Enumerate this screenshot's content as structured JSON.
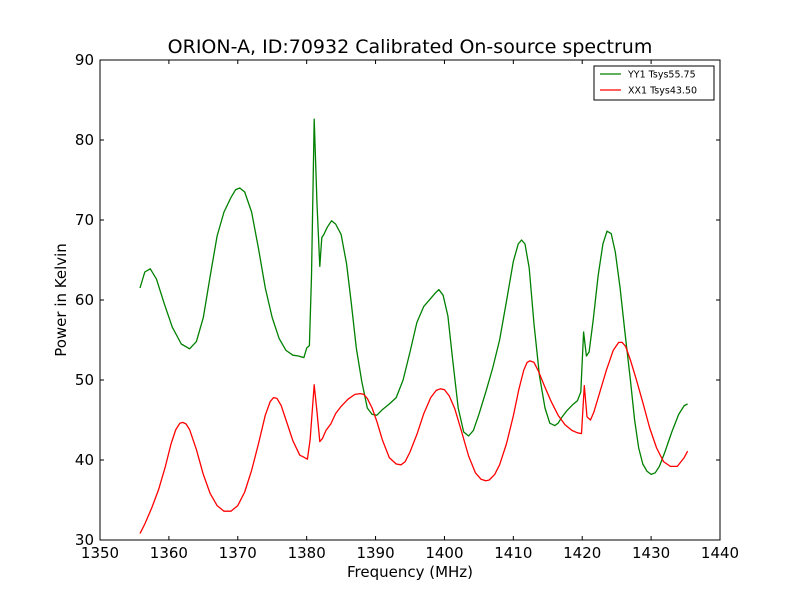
{
  "chart_data": {
    "type": "line",
    "title": "ORION-A, ID:70932 Calibrated On-source spectrum",
    "xlabel": "Frequency (MHz)",
    "ylabel": "Power in Kelvin",
    "xlim": [
      1350,
      1440
    ],
    "ylim": [
      30,
      90
    ],
    "xticks": [
      1350,
      1360,
      1370,
      1380,
      1390,
      1400,
      1410,
      1420,
      1430,
      1440
    ],
    "yticks": [
      30,
      40,
      50,
      60,
      70,
      80,
      90
    ],
    "grid": false,
    "legend_position": "top-right",
    "series": [
      {
        "name": "YY1 Tsys55.75",
        "color": "#008000",
        "x": [
          1355.8,
          1356.5,
          1357.3,
          1358.2,
          1359.3,
          1360.5,
          1361.8,
          1363.0,
          1364.0,
          1365.0,
          1366.0,
          1367.0,
          1368.0,
          1369.0,
          1369.7,
          1370.3,
          1371.0,
          1372.0,
          1373.0,
          1374.0,
          1375.0,
          1376.0,
          1377.0,
          1378.0,
          1378.8,
          1379.6,
          1380.0,
          1380.4,
          1380.7,
          1381.1,
          1381.5,
          1381.9,
          1382.2,
          1382.5,
          1383.0,
          1383.6,
          1384.2,
          1385.0,
          1385.8,
          1386.5,
          1387.2,
          1388.0,
          1388.8,
          1389.5,
          1390.2,
          1391.0,
          1392.0,
          1393.0,
          1394.0,
          1395.0,
          1396.0,
          1397.0,
          1398.0,
          1398.7,
          1399.2,
          1399.8,
          1400.5,
          1401.2,
          1402.0,
          1402.8,
          1403.5,
          1404.2,
          1405.0,
          1406.0,
          1407.0,
          1408.0,
          1409.0,
          1410.0,
          1410.7,
          1411.2,
          1411.7,
          1412.3,
          1413.0,
          1413.8,
          1414.6,
          1415.3,
          1416.0,
          1416.5,
          1417.0,
          1417.8,
          1418.6,
          1419.3,
          1419.8,
          1420.2,
          1420.6,
          1421.0,
          1421.6,
          1422.3,
          1423.0,
          1423.6,
          1424.2,
          1424.8,
          1425.5,
          1426.2,
          1427.0,
          1427.6,
          1428.2,
          1428.8,
          1429.4,
          1430.0,
          1430.6,
          1431.2,
          1432.0,
          1433.0,
          1434.0,
          1434.8,
          1435.3
        ],
        "y": [
          61.5,
          63.5,
          63.9,
          62.6,
          59.6,
          56.6,
          54.5,
          53.9,
          54.8,
          57.8,
          63.0,
          68.0,
          71.0,
          72.8,
          73.8,
          74.0,
          73.5,
          71.0,
          66.5,
          61.5,
          57.8,
          55.2,
          53.7,
          53.1,
          53.0,
          52.8,
          54.0,
          54.3,
          63.0,
          82.6,
          72.0,
          64.2,
          67.8,
          68.2,
          69.1,
          69.9,
          69.5,
          68.2,
          64.5,
          59.5,
          54.0,
          49.8,
          46.5,
          45.7,
          45.6,
          46.3,
          47.0,
          47.8,
          50.0,
          53.5,
          57.2,
          59.2,
          60.2,
          60.9,
          61.3,
          60.6,
          58.0,
          52.5,
          46.5,
          43.5,
          43.0,
          43.7,
          45.7,
          48.5,
          51.5,
          55.0,
          59.8,
          64.8,
          67.0,
          67.5,
          67.0,
          64.0,
          57.0,
          50.5,
          46.5,
          44.6,
          44.3,
          44.6,
          45.3,
          46.2,
          46.9,
          47.4,
          48.5,
          56.0,
          53.0,
          53.5,
          57.5,
          63.0,
          67.0,
          68.6,
          68.3,
          66.0,
          61.5,
          56.0,
          50.0,
          45.0,
          41.5,
          39.5,
          38.6,
          38.2,
          38.4,
          39.2,
          41.0,
          43.5,
          45.7,
          46.8,
          47.0
        ]
      },
      {
        "name": "XX1 Tsys43.50",
        "color": "#ff0000",
        "x": [
          1355.8,
          1356.5,
          1357.5,
          1358.5,
          1359.5,
          1360.3,
          1361.0,
          1361.6,
          1362.0,
          1362.5,
          1363.0,
          1364.0,
          1365.0,
          1366.0,
          1367.0,
          1368.0,
          1369.0,
          1370.0,
          1371.0,
          1372.0,
          1373.0,
          1374.0,
          1374.7,
          1375.2,
          1375.7,
          1376.3,
          1377.0,
          1378.0,
          1379.0,
          1379.5,
          1380.1,
          1380.5,
          1381.1,
          1381.5,
          1381.9,
          1382.3,
          1382.8,
          1383.5,
          1384.2,
          1385.0,
          1386.0,
          1387.0,
          1387.8,
          1388.3,
          1388.8,
          1389.5,
          1390.2,
          1391.0,
          1392.0,
          1393.0,
          1393.7,
          1394.3,
          1395.0,
          1396.0,
          1397.0,
          1398.0,
          1398.8,
          1399.4,
          1400.0,
          1400.7,
          1401.5,
          1402.5,
          1403.5,
          1404.5,
          1405.3,
          1406.0,
          1406.5,
          1407.3,
          1408.0,
          1409.0,
          1410.0,
          1410.8,
          1411.5,
          1412.0,
          1412.4,
          1413.0,
          1413.6,
          1414.5,
          1415.5,
          1416.5,
          1417.5,
          1418.5,
          1419.3,
          1419.9,
          1420.3,
          1420.7,
          1421.2,
          1421.7,
          1422.5,
          1423.5,
          1424.5,
          1425.3,
          1425.8,
          1426.3,
          1427.0,
          1427.8,
          1428.8,
          1429.8,
          1430.8,
          1431.8,
          1432.8,
          1433.8,
          1434.8,
          1435.3
        ],
        "y": [
          30.8,
          32.0,
          34.0,
          36.3,
          39.2,
          42.0,
          43.8,
          44.6,
          44.7,
          44.5,
          43.8,
          41.3,
          38.2,
          35.8,
          34.3,
          33.6,
          33.6,
          34.3,
          36.0,
          38.7,
          42.0,
          45.6,
          47.3,
          47.8,
          47.7,
          46.8,
          45.0,
          42.4,
          40.6,
          40.4,
          40.1,
          42.5,
          49.4,
          46.0,
          42.3,
          42.7,
          43.7,
          44.5,
          45.8,
          46.7,
          47.6,
          48.2,
          48.3,
          48.2,
          47.7,
          46.5,
          44.8,
          42.5,
          40.3,
          39.5,
          39.4,
          39.8,
          41.0,
          43.2,
          45.8,
          47.8,
          48.7,
          48.9,
          48.8,
          48.0,
          46.4,
          43.5,
          40.5,
          38.4,
          37.6,
          37.4,
          37.5,
          38.2,
          39.4,
          42.0,
          45.5,
          48.8,
          51.2,
          52.2,
          52.4,
          52.2,
          51.2,
          49.3,
          47.3,
          45.6,
          44.4,
          43.7,
          43.4,
          43.3,
          49.3,
          45.4,
          45.0,
          46.0,
          48.3,
          51.2,
          53.7,
          54.7,
          54.7,
          54.2,
          52.5,
          50.2,
          47.2,
          44.0,
          41.5,
          39.8,
          39.2,
          39.2,
          40.3,
          41.1
        ]
      }
    ]
  }
}
